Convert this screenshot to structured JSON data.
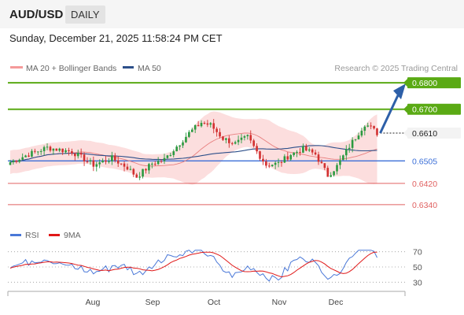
{
  "header": {
    "pair": "AUD/USD",
    "timeframe": "DAILY"
  },
  "datetime": "Sunday, December 21, 2025 11:58:24 PM CET",
  "legend": {
    "ma20_bb": "MA 20 + Bollinger Bands",
    "ma50": "MA 50",
    "credit": "Research © 2025 Trading Central"
  },
  "colors": {
    "resistance": "#5aaa14",
    "support": "#e06060",
    "pivot": "#3b6fd8",
    "current": "#222222",
    "arrow": "#2d5fa8",
    "up_candle": "#2a9a40",
    "down_candle": "#d23030",
    "bollinger": "#fbd8d8",
    "ma20": "#e88080",
    "ma50": "#2d4f8a",
    "rsi": "#4a78d8",
    "rsi_ma": "#e01818"
  },
  "chart_data": [
    {
      "type": "candlestick",
      "y_range": [
        0.628,
        0.683
      ],
      "x_labels": [
        "Aug",
        "Sep",
        "Oct",
        "Nov",
        "Dec"
      ],
      "levels": [
        {
          "value": 0.68,
          "label": "0.6800",
          "kind": "resistance"
        },
        {
          "value": 0.67,
          "label": "0.6700",
          "kind": "resistance"
        },
        {
          "value": 0.661,
          "label": "0.6610",
          "kind": "current"
        },
        {
          "value": 0.6505,
          "label": "0.6505",
          "kind": "pivot"
        },
        {
          "value": 0.642,
          "label": "0.6420",
          "kind": "support"
        },
        {
          "value": 0.634,
          "label": "0.6340",
          "kind": "support"
        }
      ],
      "target_arrow": {
        "from": 0.661,
        "to": 0.68
      },
      "series": [
        {
          "name": "MA 20 + Bollinger Bands",
          "kind": "bollinger"
        },
        {
          "name": "MA 50",
          "kind": "ma"
        }
      ]
    },
    {
      "type": "line",
      "y_range": [
        20,
        80
      ],
      "y_ticks": [
        30,
        50,
        70
      ],
      "series": [
        {
          "name": "RSI"
        },
        {
          "name": "9MA"
        }
      ]
    }
  ]
}
